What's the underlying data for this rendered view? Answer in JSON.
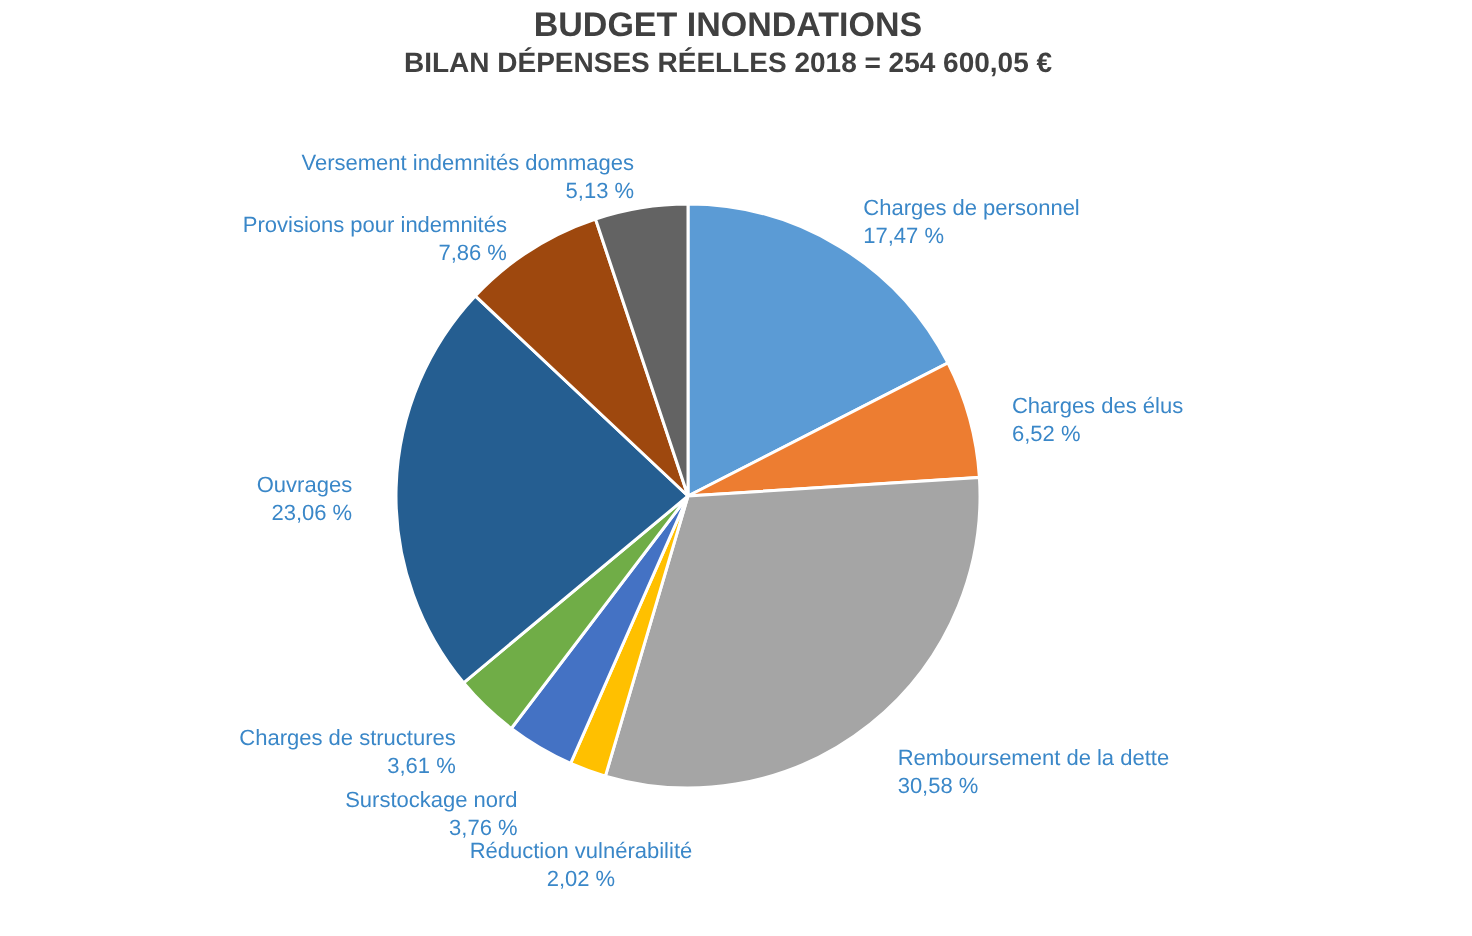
{
  "chart_data": {
    "type": "pie",
    "title": "BUDGET INONDATIONS",
    "subtitle": "BILAN DÉPENSES RÉELLES 2018 = 254 600,05 €",
    "categories": [
      "Charges de personnel",
      "Charges des élus",
      "Remboursement de la dette",
      "Réduction vulnérabilité",
      "Surstockage nord",
      "Charges de structures",
      "Ouvrages",
      "Provisions pour indemnités",
      "Versement indemnités dommages"
    ],
    "values": [
      17.47,
      6.52,
      30.58,
      2.02,
      3.76,
      3.61,
      23.06,
      7.86,
      5.13
    ],
    "value_labels": [
      "17,47 %",
      "6,52 %",
      "30,58 %",
      "2,02 %",
      "3,76 %",
      "3,61 %",
      "23,06 %",
      "7,86 %",
      "5,13 %"
    ],
    "colors": [
      "#5b9bd5",
      "#ed7d31",
      "#a5a5a5",
      "#ffc000",
      "#4472c4",
      "#70ad47",
      "#255e91",
      "#9e480e",
      "#636363"
    ],
    "legend": false
  }
}
